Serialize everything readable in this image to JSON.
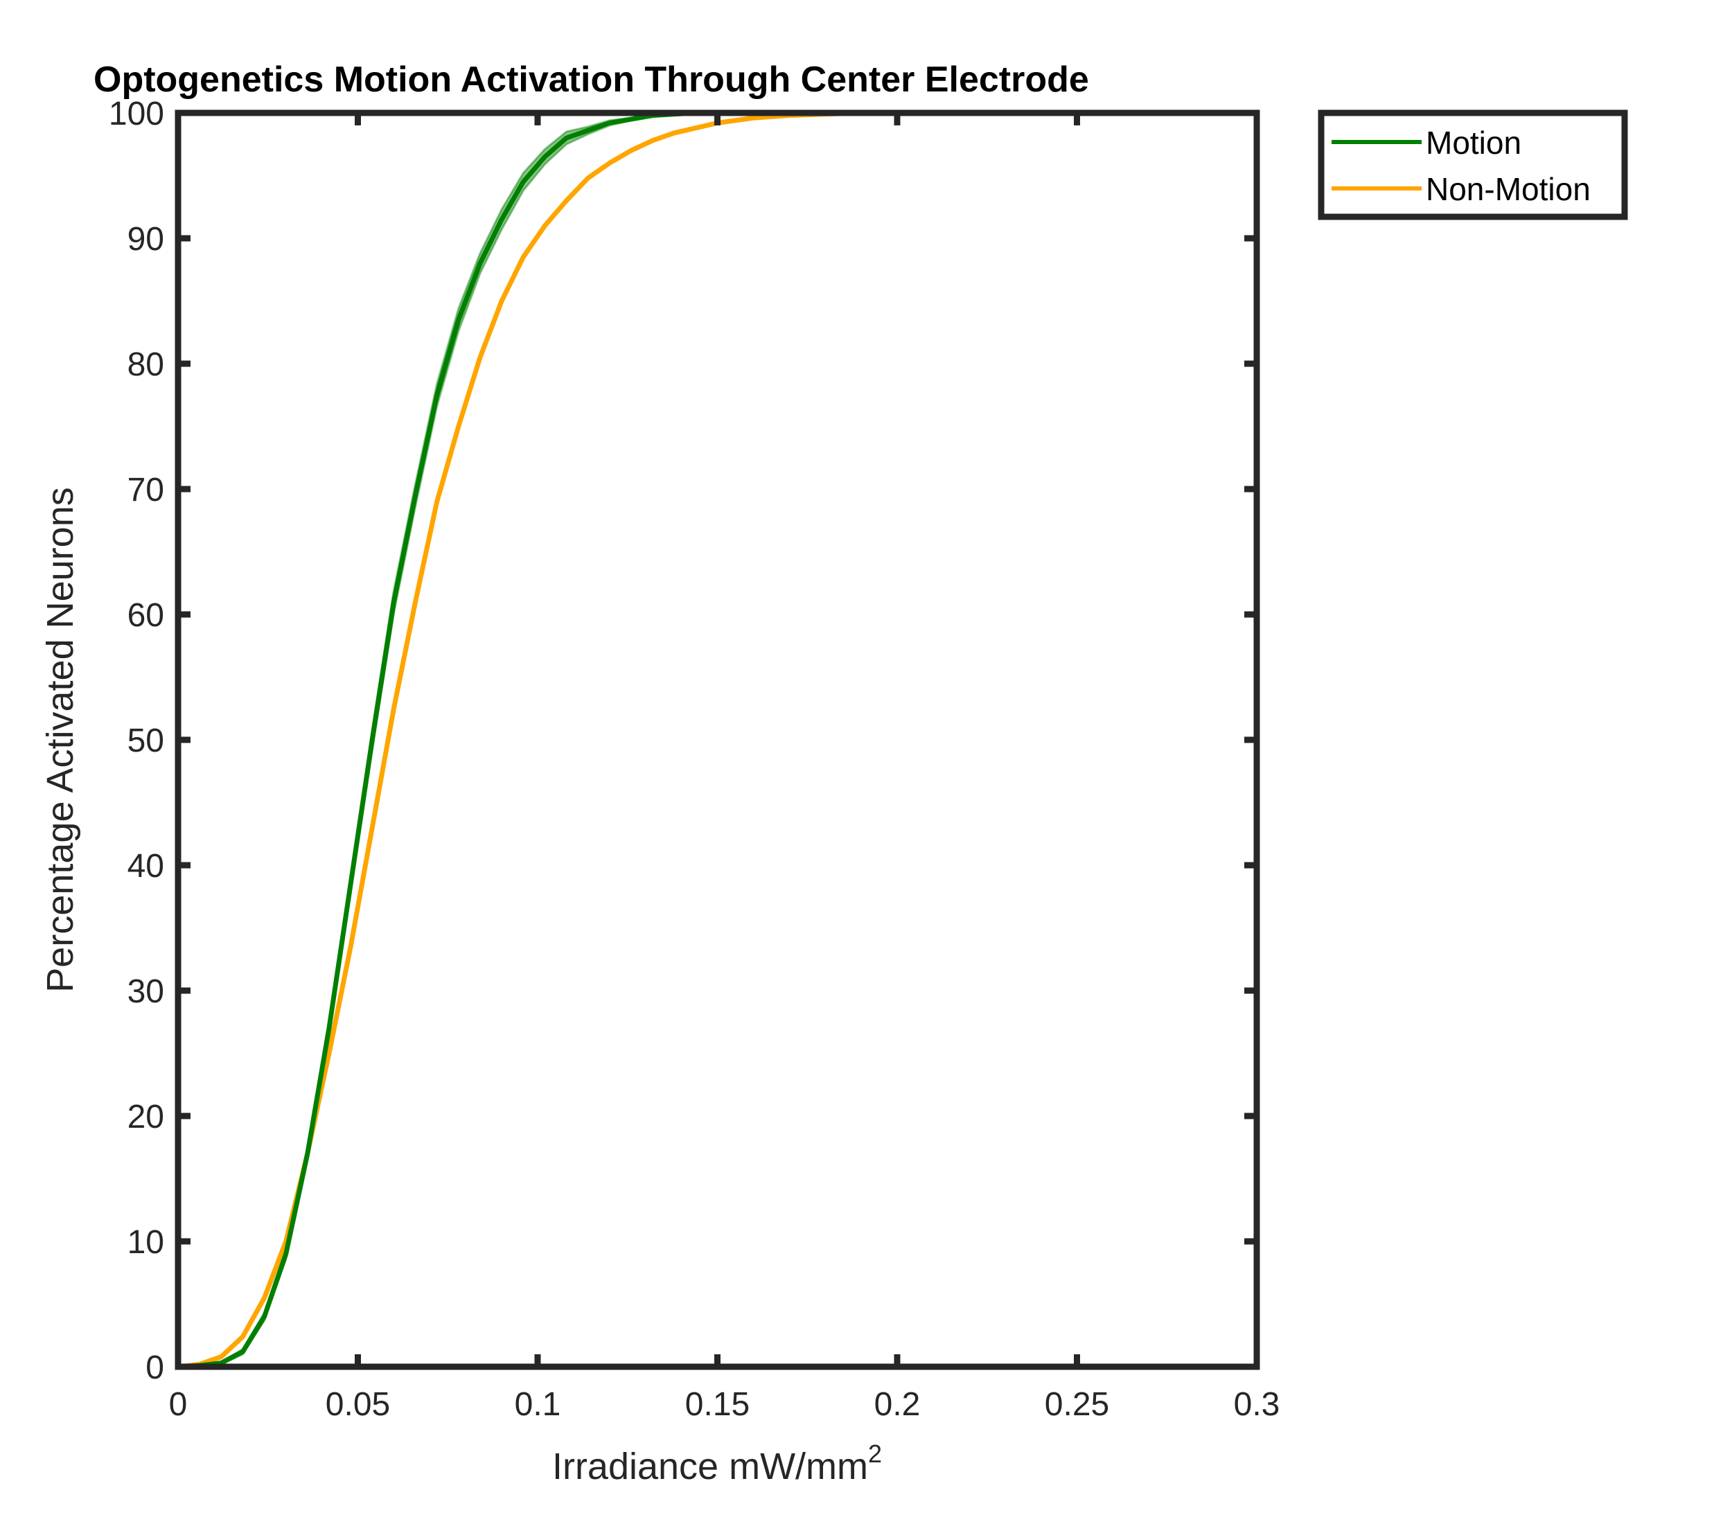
{
  "chart_data": {
    "type": "line",
    "title": "Optogenetics Motion Activation Through Center Electrode",
    "xlabel": "Irradiance mW/mm",
    "xlabel_superscript": "2",
    "ylabel": "Percentage Activated Neurons",
    "xlim": [
      0,
      0.3
    ],
    "ylim": [
      0,
      100
    ],
    "x_ticks": [
      0,
      0.05,
      0.1,
      0.15,
      0.2,
      0.25,
      0.3
    ],
    "x_tick_labels": [
      "0",
      "0.05",
      "0.1",
      "0.15",
      "0.2",
      "0.25",
      "0.3"
    ],
    "y_ticks": [
      0,
      10,
      20,
      30,
      40,
      50,
      60,
      70,
      80,
      90,
      100
    ],
    "y_tick_labels": [
      "0",
      "10",
      "20",
      "30",
      "40",
      "50",
      "60",
      "70",
      "80",
      "90",
      "100"
    ],
    "grid": false,
    "legend_position": "outside-top-right",
    "series": [
      {
        "name": "Motion",
        "color": "#007f00",
        "band_color": "#007f00",
        "x": [
          0,
          0.006,
          0.012,
          0.018,
          0.024,
          0.03,
          0.036,
          0.042,
          0.048,
          0.054,
          0.06,
          0.066,
          0.072,
          0.078,
          0.084,
          0.09,
          0.096,
          0.102,
          0.108,
          0.114,
          0.12,
          0.126,
          0.132,
          0.138,
          0.144,
          0.15,
          0.16,
          0.17,
          0.18,
          0.19,
          0.2
        ],
        "values": [
          0,
          0.1,
          0.3,
          1.2,
          4.0,
          9.0,
          17.0,
          27.0,
          38.5,
          50.0,
          61.0,
          69.5,
          77.5,
          83.5,
          88.0,
          91.5,
          94.5,
          96.5,
          98.0,
          98.6,
          99.2,
          99.5,
          99.8,
          99.9,
          100,
          100,
          100,
          100,
          100,
          100,
          100
        ],
        "band_half_width": [
          0,
          0,
          0.1,
          0.2,
          0.3,
          0.4,
          0.5,
          0.6,
          0.7,
          0.8,
          0.9,
          0.9,
          0.9,
          0.9,
          0.8,
          0.8,
          0.7,
          0.6,
          0.5,
          0.3,
          0.2,
          0.1,
          0.1,
          0,
          0,
          0,
          0,
          0,
          0,
          0,
          0
        ]
      },
      {
        "name": "Non-Motion",
        "color": "#ffa500",
        "x": [
          0,
          0.006,
          0.012,
          0.018,
          0.024,
          0.03,
          0.036,
          0.042,
          0.048,
          0.054,
          0.06,
          0.066,
          0.072,
          0.078,
          0.084,
          0.09,
          0.096,
          0.102,
          0.108,
          0.114,
          0.12,
          0.126,
          0.132,
          0.138,
          0.144,
          0.15,
          0.16,
          0.17,
          0.18,
          0.19,
          0.2
        ],
        "values": [
          0,
          0.2,
          0.8,
          2.4,
          5.5,
          10.0,
          17.0,
          25.0,
          33.5,
          43.0,
          52.5,
          61.0,
          69.0,
          75.0,
          80.5,
          85.0,
          88.5,
          91.0,
          93.0,
          94.8,
          96.0,
          97.0,
          97.8,
          98.4,
          98.8,
          99.2,
          99.6,
          99.8,
          99.9,
          100,
          100
        ]
      }
    ]
  }
}
